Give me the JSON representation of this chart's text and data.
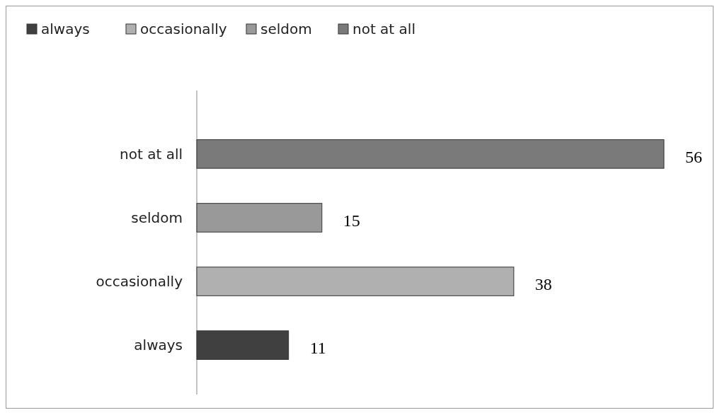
{
  "chart_data": {
    "type": "bar",
    "orientation": "horizontal",
    "categories": [
      "not at all",
      "seldom",
      "occasionally",
      "always"
    ],
    "series": [
      {
        "name": "always",
        "color": "#404040",
        "values": [
          null,
          null,
          null,
          11
        ]
      },
      {
        "name": "occasionally",
        "color": "#b0b0b0",
        "values": [
          null,
          null,
          38,
          null
        ]
      },
      {
        "name": "seldom",
        "color": "#999999",
        "values": [
          null,
          15,
          null,
          null
        ]
      },
      {
        "name": "not at all",
        "color": "#7a7a7a",
        "values": [
          56,
          null,
          null,
          null
        ]
      }
    ],
    "data_labels": true,
    "legend": "top left",
    "grid": false
  }
}
